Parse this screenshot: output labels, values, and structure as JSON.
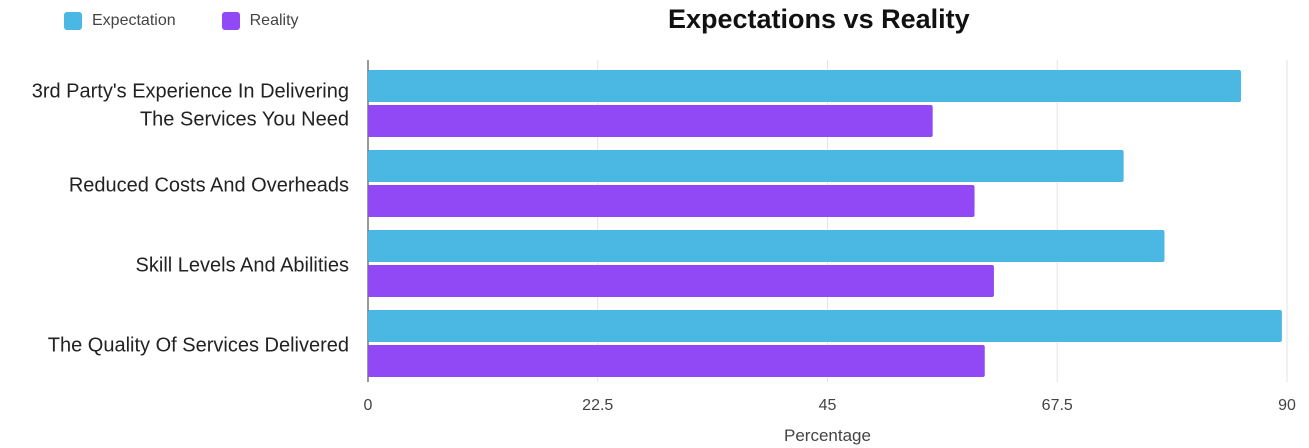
{
  "chart_data": {
    "type": "bar",
    "orientation": "horizontal",
    "title": "Expectations vs Reality",
    "xlabel": "Percentage",
    "ylabel": "",
    "xlim": [
      0,
      90
    ],
    "ticks": [
      "0",
      "22.5",
      "45",
      "67.5",
      "90"
    ],
    "tick_values": [
      0,
      22.5,
      45,
      67.5,
      90
    ],
    "grid": true,
    "legend_position": "top-left",
    "categories": [
      [
        "3rd Party's Experience In Delivering",
        "The Services You Need"
      ],
      [
        "Reduced Costs And Overheads"
      ],
      [
        "Skill Levels And Abilities"
      ],
      [
        "The Quality Of Services Delivered"
      ]
    ],
    "series": [
      {
        "name": "Expectation",
        "color": "#4BB8E3",
        "values": [
          85.5,
          74,
          78,
          89.5
        ]
      },
      {
        "name": "Reality",
        "color": "#9149F5",
        "values": [
          55.3,
          59.4,
          61.3,
          60.4
        ]
      }
    ]
  }
}
